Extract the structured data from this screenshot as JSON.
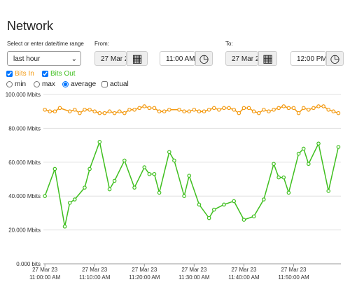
{
  "page": {
    "title": "Network",
    "range_label": "Select or enter date/time range",
    "range": "last hour",
    "from_label": "From:",
    "from_date": "27 Mar 2",
    "from_time": "11:00 AM",
    "to_label": "To:",
    "to_date": "27 Mar 2",
    "to_time": "12:00 PM",
    "modes": [
      "min",
      "max",
      "average"
    ],
    "actual": "actual"
  },
  "chart_data": {
    "type": "line",
    "xlim": [
      -0.3,
      59.5
    ],
    "ylim": [
      0,
      100
    ],
    "grid": true,
    "yticks": [
      {
        "value": 0,
        "label": "0.000 bits"
      },
      {
        "value": 20,
        "label": "20.000 Mbits"
      },
      {
        "value": 40,
        "label": "40.000 Mbits"
      },
      {
        "value": 60,
        "label": "60.000 Mbits"
      },
      {
        "value": 80,
        "label": "80.000 Mbits"
      },
      {
        "value": 100,
        "label": "100.000 Mbits"
      }
    ],
    "xticks": [
      {
        "value": 0,
        "date": "27 Mar 23",
        "label": "11:00:00 AM"
      },
      {
        "value": 10,
        "date": "27 Mar 23",
        "label": "11:10:00 AM"
      },
      {
        "value": 20,
        "date": "27 Mar 23",
        "label": "11:20:00 AM"
      },
      {
        "value": 30,
        "date": "27 Mar 23",
        "label": "11:30:00 AM"
      },
      {
        "value": 40,
        "date": "27 Mar 23",
        "label": "11:40:00 AM"
      },
      {
        "value": 50,
        "date": "27 Mar 23",
        "label": "11:50:00 AM"
      }
    ],
    "series": [
      {
        "name": "Bits In",
        "color": "#f39a12",
        "x": [
          0,
          1,
          2,
          3,
          5,
          6,
          7,
          8,
          9,
          10,
          11,
          12,
          13,
          14,
          15,
          16,
          17,
          18,
          19,
          20,
          21,
          22,
          23,
          24,
          25,
          27,
          28,
          29,
          30,
          31,
          32,
          33,
          34,
          35,
          36,
          37,
          38,
          39,
          40,
          41,
          42,
          43,
          44,
          45,
          46,
          47,
          48,
          49,
          50,
          51,
          52,
          53,
          54,
          55,
          56,
          57,
          58,
          59
        ],
        "values": [
          91,
          90,
          90,
          92,
          90,
          91,
          89,
          91,
          91,
          90,
          89,
          89,
          90,
          89,
          90,
          89,
          91,
          91,
          92,
          93,
          92,
          92,
          90,
          90,
          91,
          91,
          90,
          90,
          91,
          90,
          90,
          91,
          92,
          91,
          92,
          92,
          91,
          89,
          92,
          92,
          90,
          89,
          91,
          90,
          91,
          92,
          93,
          92,
          92,
          89,
          92,
          91,
          92,
          93,
          93,
          91,
          90,
          89
        ]
      },
      {
        "name": "Bits Out",
        "color": "#3fbf1f",
        "x": [
          0,
          2,
          4,
          5,
          6,
          8,
          9,
          11,
          13,
          14,
          16,
          18,
          20,
          21,
          22,
          23,
          25,
          26,
          28,
          29,
          31,
          33,
          34,
          36,
          38,
          40,
          42,
          44,
          46,
          47,
          48,
          49,
          51,
          52,
          53,
          55,
          57,
          59
        ],
        "values": [
          40,
          56,
          22,
          36,
          38,
          45,
          56,
          72,
          44,
          49,
          61,
          45,
          57,
          53,
          53,
          42,
          66,
          61,
          40,
          52,
          35,
          27,
          32,
          35,
          37,
          26,
          28,
          38,
          59,
          51,
          51,
          42,
          65,
          68,
          59,
          71,
          43,
          69
        ]
      }
    ]
  }
}
